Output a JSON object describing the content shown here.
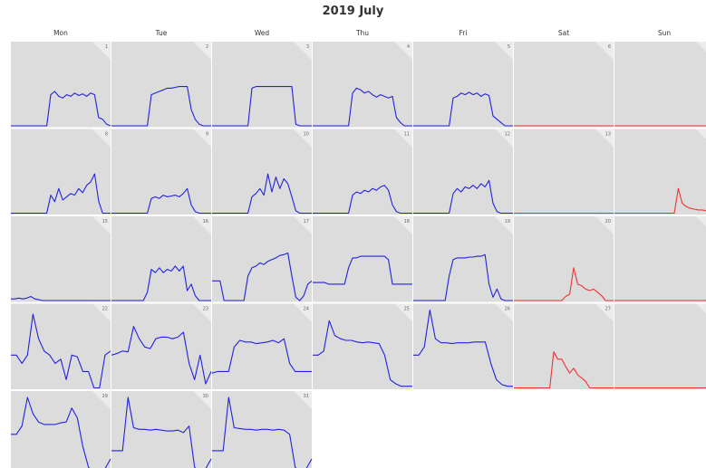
{
  "title": "2019 July",
  "weekdays": [
    "Mon",
    "Tue",
    "Wed",
    "Thu",
    "Fri",
    "Sat",
    "Sun"
  ],
  "colors": {
    "weekday": "#2222dd",
    "weekend": "#ee3333",
    "panel": "#dcdcdc",
    "corner": "#ececec"
  },
  "chart_data": {
    "type": "line",
    "title": "2019 July",
    "xlabel": "",
    "ylabel": "",
    "ylim": [
      0,
      1
    ],
    "first_weekday_index": 0,
    "grid": false,
    "legend": "none",
    "days": [
      {
        "day": 1,
        "values": [
          0,
          0,
          0,
          0,
          0,
          0,
          0,
          0,
          0,
          0,
          0.38,
          0.42,
          0.36,
          0.34,
          0.38,
          0.36,
          0.4,
          0.37,
          0.39,
          0.36,
          0.4,
          0.38,
          0.1,
          0.08,
          0.02,
          0
        ]
      },
      {
        "day": 2,
        "values": [
          0,
          0,
          0,
          0,
          0,
          0,
          0,
          0,
          0,
          0,
          0.38,
          0.4,
          0.42,
          0.44,
          0.46,
          0.46,
          0.47,
          0.48,
          0.48,
          0.48,
          0.2,
          0.08,
          0.02,
          0,
          0,
          0
        ]
      },
      {
        "day": 3,
        "values": [
          0,
          0,
          0,
          0,
          0,
          0,
          0,
          0,
          0,
          0,
          0.46,
          0.48,
          0.48,
          0.48,
          0.48,
          0.48,
          0.48,
          0.48,
          0.48,
          0.48,
          0.48,
          0.02,
          0,
          0,
          0,
          0
        ]
      },
      {
        "day": 4,
        "values": [
          0,
          0,
          0,
          0,
          0,
          0,
          0,
          0,
          0,
          0,
          0.4,
          0.46,
          0.44,
          0.4,
          0.42,
          0.38,
          0.35,
          0.38,
          0.36,
          0.34,
          0.36,
          0.1,
          0.04,
          0,
          0,
          0
        ]
      },
      {
        "day": 5,
        "values": [
          0,
          0,
          0,
          0,
          0,
          0,
          0,
          0,
          0,
          0,
          0.34,
          0.36,
          0.4,
          0.38,
          0.41,
          0.38,
          0.4,
          0.36,
          0.39,
          0.37,
          0.12,
          0.08,
          0.04,
          0,
          0,
          0
        ]
      },
      {
        "day": 6,
        "values": [
          0,
          0,
          0,
          0,
          0,
          0,
          0,
          0,
          0,
          0,
          0,
          0,
          0,
          0,
          0,
          0,
          0,
          0,
          0,
          0,
          0,
          0,
          0,
          0,
          0,
          0
        ]
      },
      {
        "day": 7,
        "values": [
          0,
          0,
          0,
          0,
          0,
          0,
          0,
          0,
          0,
          0,
          0,
          0,
          0,
          0,
          0,
          0,
          0,
          0,
          0,
          0,
          0,
          0,
          0,
          0,
          0,
          0
        ]
      },
      {
        "day": 8,
        "values": [
          0,
          0,
          0,
          0,
          0,
          0,
          0,
          0,
          0,
          0,
          0.22,
          0.14,
          0.3,
          0.16,
          0.2,
          0.24,
          0.22,
          0.3,
          0.25,
          0.34,
          0.38,
          0.48,
          0.15,
          0,
          0,
          0
        ]
      },
      {
        "day": 9,
        "values": [
          0,
          0,
          0,
          0,
          0,
          0,
          0,
          0,
          0,
          0,
          0.18,
          0.2,
          0.18,
          0.22,
          0.2,
          0.21,
          0.22,
          0.2,
          0.24,
          0.3,
          0.1,
          0.02,
          0,
          0,
          0,
          0
        ]
      },
      {
        "day": 10,
        "values": [
          0,
          0,
          0,
          0,
          0,
          0,
          0,
          0,
          0,
          0,
          0.2,
          0.24,
          0.3,
          0.22,
          0.48,
          0.26,
          0.44,
          0.3,
          0.42,
          0.36,
          0.2,
          0.03,
          0,
          0,
          0,
          0
        ]
      },
      {
        "day": 11,
        "values": [
          0,
          0,
          0,
          0,
          0,
          0,
          0,
          0,
          0,
          0,
          0.22,
          0.26,
          0.24,
          0.28,
          0.26,
          0.3,
          0.28,
          0.32,
          0.34,
          0.28,
          0.1,
          0.02,
          0,
          0,
          0,
          0
        ]
      },
      {
        "day": 12,
        "values": [
          0,
          0,
          0,
          0,
          0,
          0,
          0,
          0,
          0,
          0,
          0.24,
          0.3,
          0.26,
          0.32,
          0.3,
          0.34,
          0.3,
          0.36,
          0.32,
          0.4,
          0.12,
          0.02,
          0,
          0,
          0,
          0
        ]
      },
      {
        "day": 13,
        "values": [
          0,
          0,
          0,
          0,
          0,
          0,
          0,
          0,
          0,
          0,
          0,
          0,
          0,
          0,
          0,
          0,
          0,
          0,
          0,
          0,
          0,
          0,
          0,
          0,
          0,
          0
        ]
      },
      {
        "day": 14,
        "values": [
          0,
          0,
          0,
          0,
          0,
          0,
          0,
          0,
          0,
          0,
          0,
          0,
          0,
          0,
          0,
          0,
          0.3,
          0.12,
          0.08,
          0.06,
          0.05,
          0.04,
          0.04,
          0.03,
          0.03,
          0.03
        ]
      },
      {
        "day": 15,
        "values": [
          0.02,
          0.02,
          0.03,
          0.02,
          0.03,
          0.05,
          0.02,
          0.01,
          0,
          0,
          0,
          0,
          0,
          0,
          0,
          0,
          0,
          0,
          0,
          0,
          0,
          0,
          0,
          0,
          0,
          0
        ]
      },
      {
        "day": 16,
        "values": [
          0,
          0,
          0,
          0,
          0,
          0,
          0,
          0,
          0,
          0.1,
          0.38,
          0.34,
          0.4,
          0.34,
          0.38,
          0.36,
          0.42,
          0.36,
          0.42,
          0.12,
          0.2,
          0.06,
          0,
          0,
          0,
          0
        ]
      },
      {
        "day": 17,
        "values": [
          0.24,
          0.24,
          0.24,
          0,
          0,
          0,
          0,
          0,
          0,
          0.3,
          0.4,
          0.42,
          0.46,
          0.44,
          0.48,
          0.5,
          0.52,
          0.55,
          0.56,
          0.58,
          0.3,
          0.04,
          0,
          0.06,
          0.2,
          0.24
        ]
      },
      {
        "day": 18,
        "values": [
          0.22,
          0.22,
          0.22,
          0.22,
          0.2,
          0.2,
          0.2,
          0.2,
          0.2,
          0.4,
          0.52,
          0.52,
          0.54,
          0.54,
          0.54,
          0.54,
          0.54,
          0.54,
          0.54,
          0.5,
          0.2,
          0.2,
          0.2,
          0.2,
          0.2,
          0.2
        ]
      },
      {
        "day": 19,
        "values": [
          0,
          0,
          0,
          0,
          0,
          0,
          0,
          0,
          0,
          0.3,
          0.5,
          0.52,
          0.52,
          0.52,
          0.53,
          0.53,
          0.54,
          0.54,
          0.56,
          0.2,
          0.04,
          0.14,
          0.02,
          0,
          0,
          0
        ]
      },
      {
        "day": 20,
        "values": [
          0,
          0,
          0,
          0,
          0,
          0,
          0,
          0,
          0,
          0,
          0,
          0,
          0,
          0.05,
          0.08,
          0.4,
          0.2,
          0.18,
          0.14,
          0.12,
          0.14,
          0.1,
          0.06,
          0,
          0,
          0
        ]
      },
      {
        "day": 21,
        "values": [
          0,
          0,
          0,
          0,
          0,
          0,
          0,
          0,
          0,
          0,
          0,
          0,
          0,
          0,
          0,
          0,
          0,
          0,
          0,
          0,
          0,
          0,
          0,
          0,
          0.2,
          0.4
        ]
      },
      {
        "day": 22,
        "values": [
          0.4,
          0.4,
          0.3,
          0.4,
          0.9,
          0.6,
          0.45,
          0.4,
          0.3,
          0.35,
          0.1,
          0.4,
          0.38,
          0.2,
          0.2,
          0,
          0,
          0.4,
          0.45
        ]
      },
      {
        "day": 23,
        "values": [
          0.4,
          0.42,
          0.45,
          0.44,
          0.75,
          0.6,
          0.5,
          0.48,
          0.6,
          0.62,
          0.62,
          0.6,
          0.62,
          0.68,
          0.3,
          0.1,
          0.4,
          0.05,
          0.2
        ]
      },
      {
        "day": 24,
        "values": [
          0.18,
          0.2,
          0.2,
          0.2,
          0.5,
          0.58,
          0.56,
          0.56,
          0.54,
          0.55,
          0.56,
          0.58,
          0.55,
          0.6,
          0.3,
          0.2,
          0.2,
          0.2,
          0.2
        ]
      },
      {
        "day": 25,
        "values": [
          0.4,
          0.4,
          0.45,
          0.82,
          0.64,
          0.6,
          0.58,
          0.58,
          0.56,
          0.55,
          0.56,
          0.55,
          0.54,
          0.4,
          0.1,
          0.05,
          0.02,
          0.02,
          0.02
        ]
      },
      {
        "day": 26,
        "values": [
          0.4,
          0.4,
          0.5,
          0.95,
          0.6,
          0.55,
          0.55,
          0.54,
          0.55,
          0.55,
          0.55,
          0.56,
          0.56,
          0.56,
          0.3,
          0.1,
          0.04,
          0.02,
          0.02
        ]
      },
      {
        "day": 27,
        "values": [
          0,
          0,
          0,
          0,
          0,
          0,
          0,
          0,
          0,
          0,
          0.44,
          0.35,
          0.35,
          0.26,
          0.18,
          0.24,
          0.16,
          0.12,
          0.08,
          0,
          0,
          0,
          0,
          0,
          0,
          0
        ]
      },
      {
        "day": 28,
        "values": [
          0,
          0,
          0,
          0,
          0,
          0,
          0,
          0,
          0,
          0,
          0,
          0,
          0,
          0,
          0,
          0,
          0,
          0,
          0,
          0,
          0,
          0,
          0,
          0,
          0.25,
          0.5
        ]
      },
      {
        "day": 29,
        "values": [
          0.5,
          0.5,
          0.6,
          0.95,
          0.75,
          0.65,
          0.62,
          0.62,
          0.62,
          0.64,
          0.65,
          0.82,
          0.7,
          0.35,
          0.1,
          0.02,
          0,
          0.08,
          0.2
        ]
      },
      {
        "day": 30,
        "values": [
          0.3,
          0.3,
          0.3,
          0.95,
          0.58,
          0.56,
          0.56,
          0.55,
          0.56,
          0.55,
          0.54,
          0.54,
          0.55,
          0.52,
          0.6,
          0.1,
          0.02,
          0.08,
          0.2
        ]
      },
      {
        "day": 31,
        "values": [
          0.3,
          0.3,
          0.3,
          0.95,
          0.58,
          0.57,
          0.56,
          0.56,
          0.55,
          0.56,
          0.56,
          0.55,
          0.56,
          0.55,
          0.5,
          0.1,
          0.02,
          0.08,
          0.2
        ]
      }
    ]
  }
}
